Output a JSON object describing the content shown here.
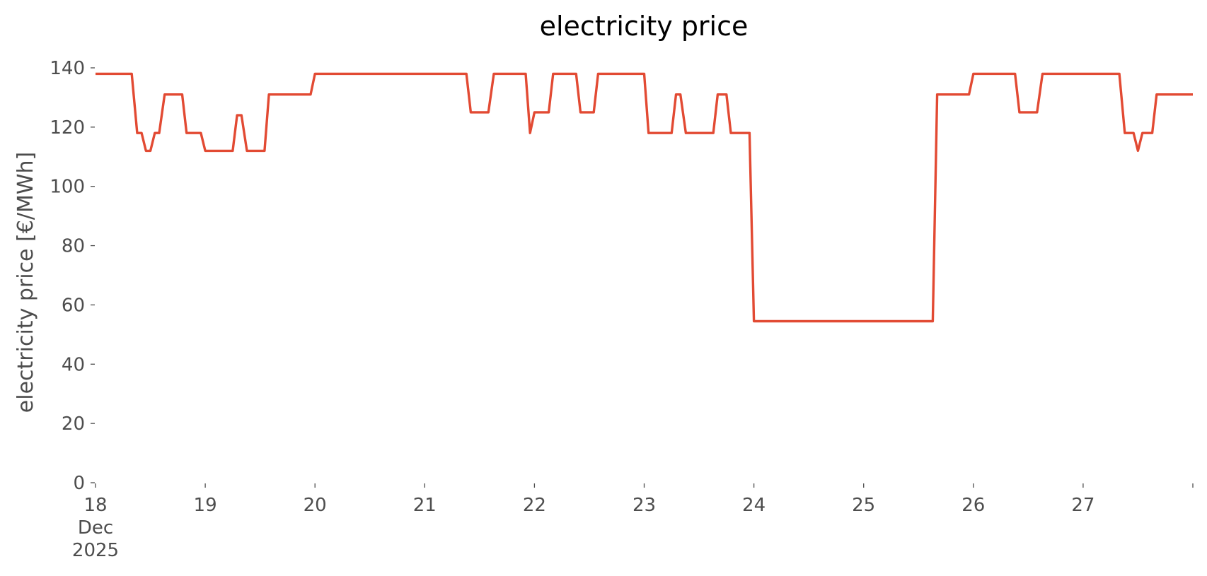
{
  "chart_data": {
    "type": "line",
    "title": "electricity price",
    "xlabel": "",
    "ylabel": "electricity price [€/MWh]",
    "x_unit": "days (December 2025)",
    "xlim": [
      18,
      28
    ],
    "ylim": [
      0,
      140
    ],
    "grid": false,
    "y_ticks": [
      0,
      20,
      40,
      60,
      80,
      100,
      120,
      140
    ],
    "x_ticks": [
      {
        "value": 18,
        "lines": [
          "18",
          "Dec",
          "2025"
        ]
      },
      {
        "value": 19,
        "lines": [
          "19"
        ]
      },
      {
        "value": 20,
        "lines": [
          "20"
        ]
      },
      {
        "value": 21,
        "lines": [
          "21"
        ]
      },
      {
        "value": 22,
        "lines": [
          "22"
        ]
      },
      {
        "value": 23,
        "lines": [
          "23"
        ]
      },
      {
        "value": 24,
        "lines": [
          "24"
        ]
      },
      {
        "value": 25,
        "lines": [
          "25"
        ]
      },
      {
        "value": 26,
        "lines": [
          "26"
        ]
      },
      {
        "value": 27,
        "lines": [
          "27"
        ]
      },
      {
        "value": 28,
        "lines": [
          ""
        ]
      }
    ],
    "series": [
      {
        "color": "#e24a33",
        "points": [
          [
            18.0,
            138.0
          ],
          [
            18.33,
            138.0
          ],
          [
            18.38,
            118.0
          ],
          [
            18.42,
            118.0
          ],
          [
            18.46,
            112.0
          ],
          [
            18.5,
            112.0
          ],
          [
            18.54,
            118.0
          ],
          [
            18.58,
            118.0
          ],
          [
            18.63,
            131.0
          ],
          [
            18.79,
            131.0
          ],
          [
            18.83,
            118.0
          ],
          [
            18.96,
            118.0
          ],
          [
            19.0,
            112.0
          ],
          [
            19.25,
            112.0
          ],
          [
            19.29,
            124.0
          ],
          [
            19.33,
            124.0
          ],
          [
            19.38,
            112.0
          ],
          [
            19.54,
            112.0
          ],
          [
            19.58,
            131.0
          ],
          [
            19.96,
            131.0
          ],
          [
            20.0,
            138.0
          ],
          [
            21.38,
            138.0
          ],
          [
            21.42,
            125.0
          ],
          [
            21.58,
            125.0
          ],
          [
            21.63,
            138.0
          ],
          [
            21.92,
            138.0
          ],
          [
            21.96,
            118.0
          ],
          [
            22.0,
            125.0
          ],
          [
            22.13,
            125.0
          ],
          [
            22.17,
            138.0
          ],
          [
            22.38,
            138.0
          ],
          [
            22.42,
            125.0
          ],
          [
            22.54,
            125.0
          ],
          [
            22.58,
            138.0
          ],
          [
            23.0,
            138.0
          ],
          [
            23.04,
            118.0
          ],
          [
            23.25,
            118.0
          ],
          [
            23.29,
            131.0
          ],
          [
            23.33,
            131.0
          ],
          [
            23.38,
            118.0
          ],
          [
            23.63,
            118.0
          ],
          [
            23.67,
            131.0
          ],
          [
            23.75,
            131.0
          ],
          [
            23.79,
            118.0
          ],
          [
            23.96,
            118.0
          ],
          [
            24.0,
            54.5
          ],
          [
            25.63,
            54.5
          ],
          [
            25.67,
            131.0
          ],
          [
            25.96,
            131.0
          ],
          [
            26.0,
            138.0
          ],
          [
            26.38,
            138.0
          ],
          [
            26.42,
            125.0
          ],
          [
            26.58,
            125.0
          ],
          [
            26.63,
            138.0
          ],
          [
            27.33,
            138.0
          ],
          [
            27.38,
            118.0
          ],
          [
            27.46,
            118.0
          ],
          [
            27.5,
            112.0
          ],
          [
            27.54,
            118.0
          ],
          [
            27.63,
            118.0
          ],
          [
            27.67,
            131.0
          ],
          [
            28.0,
            131.0
          ]
        ]
      }
    ]
  }
}
